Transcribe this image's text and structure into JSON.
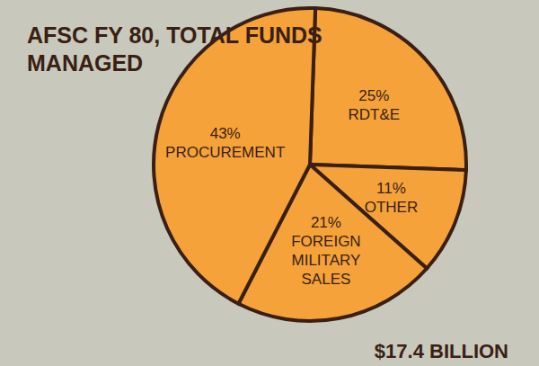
{
  "chart_data": {
    "type": "pie",
    "title": "AFSC FY 80, TOTAL FUNDS MANAGED",
    "categories": [
      "RDT&E",
      "OTHER",
      "FOREIGN MILITARY SALES",
      "PROCUREMENT"
    ],
    "values": [
      25,
      11,
      21,
      43
    ],
    "value_labels": [
      "25%",
      "11%",
      "21%",
      "43%"
    ],
    "color": "#f5a23a",
    "data_labels": true,
    "annotation": "$17.4 BILLION"
  }
}
